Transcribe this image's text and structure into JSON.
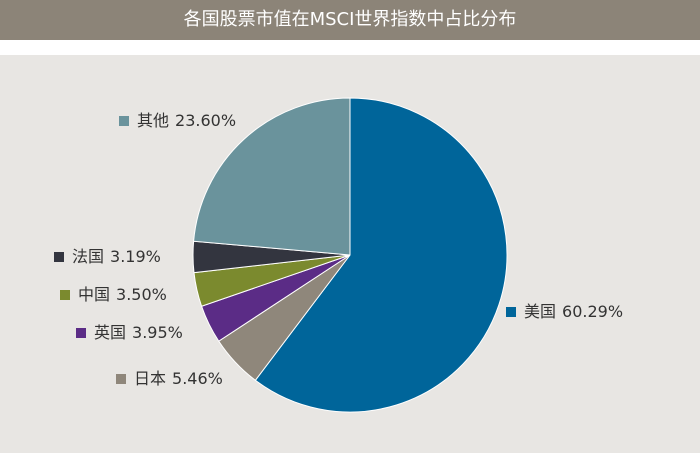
{
  "chart_data": {
    "type": "pie",
    "title": "各国股票市值在MSCI世界指数中占比分布",
    "categories": [
      "美国",
      "日本",
      "英国",
      "中国",
      "法国",
      "其他"
    ],
    "values": [
      60.29,
      5.46,
      3.95,
      3.5,
      3.19,
      23.6
    ],
    "value_labels": [
      "60.29%",
      "5.46%",
      "3.95%",
      "3.50%",
      "3.19%",
      "23.60%"
    ],
    "colors": [
      "#00659a",
      "#8f877b",
      "#5b2c86",
      "#7b8a2e",
      "#33353f",
      "#6a939c"
    ]
  }
}
